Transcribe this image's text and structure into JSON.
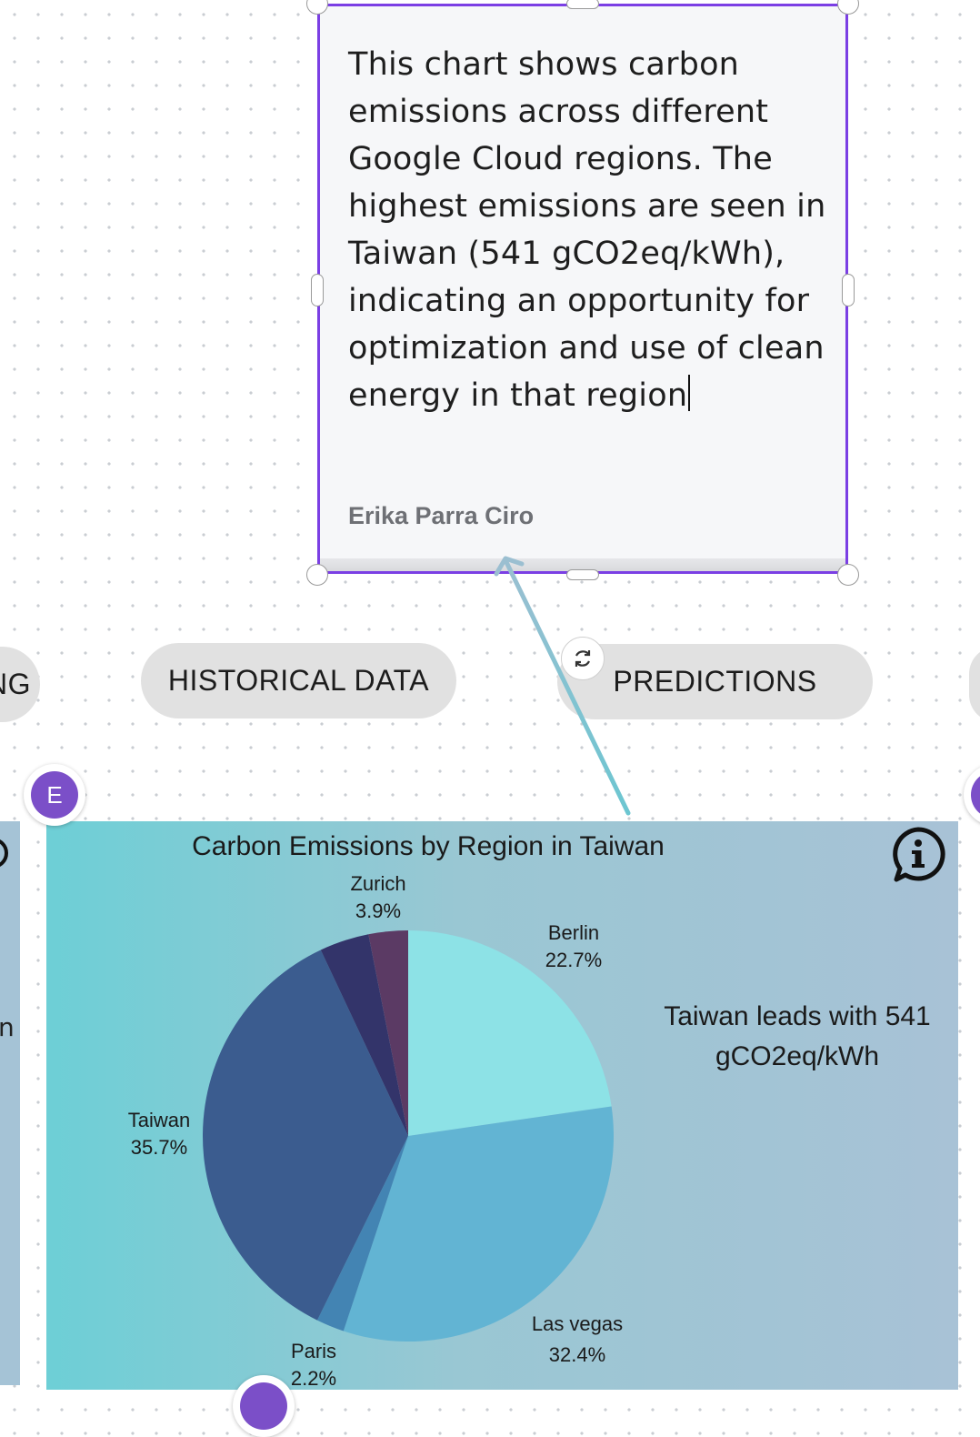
{
  "note": {
    "text": "This chart shows carbon emissions across different Google Cloud regions. The highest emissions are seen in Taiwan (541 gCO2eq/kWh), indicating an opportunity for optimization and use of clean energy in that region",
    "author": "Erika Parra Ciro",
    "border_color": "#7b3fe4"
  },
  "pills": {
    "left_partial": "NG",
    "historical": "HISTORICAL DATA",
    "predictions": "PREDICTIONS"
  },
  "rotate_icon": "rotate-icon",
  "avatar": {
    "initial": "E",
    "color": "#7b4fc8"
  },
  "left_partial_text": "n",
  "chart_data": {
    "type": "pie",
    "title": "Carbon Emissions by Region in Taiwan",
    "annotation": "Taiwan leads with 541 gCO2eq/kWh",
    "info_icon": "info-icon",
    "slices": [
      {
        "label": "Berlin",
        "value": 22.7,
        "value_label": "22.7%",
        "color": "#8de2e6"
      },
      {
        "label": "Las vegas",
        "value": 32.4,
        "value_label": "32.4%",
        "color": "#62b4d3"
      },
      {
        "label": "Paris",
        "value": 2.2,
        "value_label": "2.2%",
        "color": "#4384b3"
      },
      {
        "label": "Taiwan",
        "value": 35.7,
        "value_label": "35.7%",
        "color": "#3b5c8f"
      },
      {
        "label": "Zurich",
        "value": 3.9,
        "value_label": "3.9%",
        "color": "#33346a"
      },
      {
        "label": "",
        "value": 3.1,
        "value_label": "",
        "color": "#5b3a64"
      }
    ]
  }
}
